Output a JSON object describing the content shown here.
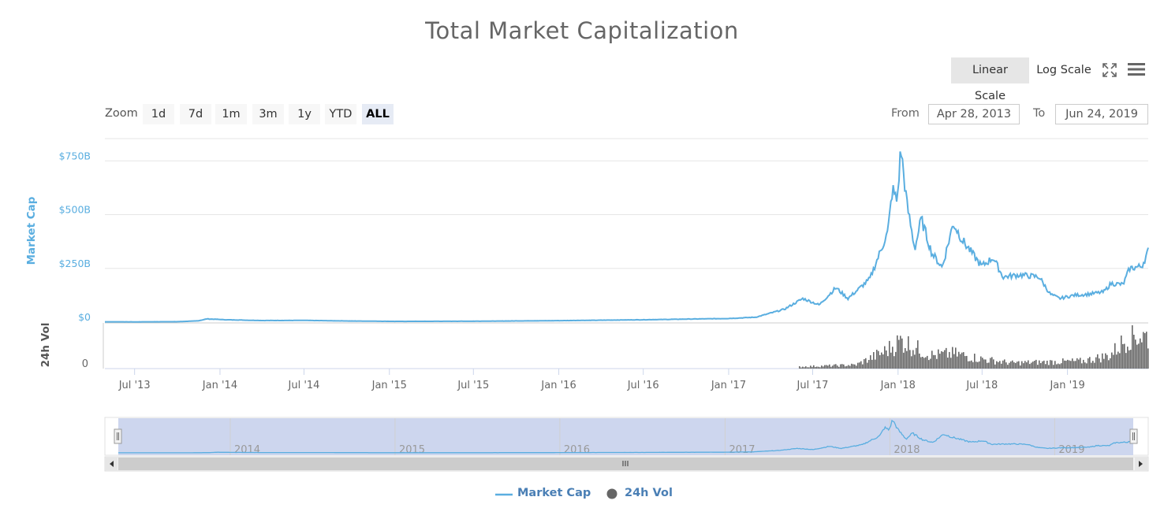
{
  "title": "Total Market Capitalization",
  "scale_buttons": {
    "linear": "Linear Scale",
    "log": "Log Scale",
    "fullscreen_icon": "fullscreen-icon",
    "menu_icon": "hamburger-menu-icon"
  },
  "zoom": {
    "label": "Zoom",
    "buttons": [
      "1d",
      "7d",
      "1m",
      "3m",
      "1y",
      "YTD",
      "ALL"
    ],
    "active": "ALL"
  },
  "range": {
    "from_label": "From",
    "from_value": "Apr 28, 2013",
    "to_label": "To",
    "to_value": "Jun 24, 2019"
  },
  "colors": {
    "market_cap": "#5aaee0",
    "volume": "#666666",
    "navigator_fill": "#cdd6ee",
    "grid": "#e6e6e6"
  },
  "chart_data": {
    "type": "line",
    "title": "Total Market Capitalization",
    "xlim": [
      "2013-04-28",
      "2019-06-24"
    ],
    "x_ticks": [
      "Jul '13",
      "Jan '14",
      "Jul '14",
      "Jan '15",
      "Jul '15",
      "Jan '16",
      "Jul '16",
      "Jan '17",
      "Jul '17",
      "Jan '18",
      "Jul '18",
      "Jan '19"
    ],
    "y_axis": {
      "label": "Market Cap",
      "ticks": [
        "$0",
        "$250B",
        "$500B",
        "$750B"
      ],
      "ylim": [
        0,
        850
      ]
    },
    "volume_axis": {
      "label": "24h Vol",
      "ticks": [
        "0"
      ]
    },
    "navigator_years": [
      "2014",
      "2015",
      "2016",
      "2017",
      "2018",
      "2019"
    ],
    "series": [
      {
        "name": "Market Cap",
        "unit": "billion USD",
        "points": [
          [
            "2013-04-28",
            1.6
          ],
          [
            "2013-07-01",
            1.2
          ],
          [
            "2013-10-01",
            2.0
          ],
          [
            "2013-11-15",
            6.0
          ],
          [
            "2013-12-04",
            15.0
          ],
          [
            "2014-01-15",
            11.0
          ],
          [
            "2014-04-01",
            7.5
          ],
          [
            "2014-07-01",
            8.0
          ],
          [
            "2014-10-01",
            5.5
          ],
          [
            "2015-01-15",
            3.5
          ],
          [
            "2015-07-01",
            4.2
          ],
          [
            "2016-01-01",
            7.0
          ],
          [
            "2016-07-01",
            11.0
          ],
          [
            "2017-01-01",
            17.0
          ],
          [
            "2017-03-01",
            23.0
          ],
          [
            "2017-05-01",
            60.0
          ],
          [
            "2017-06-10",
            110.0
          ],
          [
            "2017-07-15",
            80.0
          ],
          [
            "2017-08-20",
            160.0
          ],
          [
            "2017-09-15",
            110.0
          ],
          [
            "2017-11-01",
            200.0
          ],
          [
            "2017-12-10",
            420.0
          ],
          [
            "2017-12-20",
            620.0
          ],
          [
            "2017-12-30",
            560.0
          ],
          [
            "2018-01-07",
            810.0
          ],
          [
            "2018-01-20",
            550.0
          ],
          [
            "2018-02-06",
            340.0
          ],
          [
            "2018-02-20",
            480.0
          ],
          [
            "2018-03-15",
            320.0
          ],
          [
            "2018-04-06",
            255.0
          ],
          [
            "2018-04-30",
            460.0
          ],
          [
            "2018-05-20",
            380.0
          ],
          [
            "2018-06-30",
            260.0
          ],
          [
            "2018-07-25",
            300.0
          ],
          [
            "2018-08-15",
            210.0
          ],
          [
            "2018-09-20",
            220.0
          ],
          [
            "2018-11-01",
            210.0
          ],
          [
            "2018-11-25",
            130.0
          ],
          [
            "2018-12-15",
            110.0
          ],
          [
            "2019-01-15",
            125.0
          ],
          [
            "2019-02-15",
            130.0
          ],
          [
            "2019-03-20",
            140.0
          ],
          [
            "2019-04-05",
            180.0
          ],
          [
            "2019-05-01",
            175.0
          ],
          [
            "2019-05-15",
            250.0
          ],
          [
            "2019-06-10",
            260.0
          ],
          [
            "2019-06-24",
            330.0
          ]
        ]
      },
      {
        "name": "24h Vol",
        "unit": "relative",
        "points": [
          [
            "2017-06-01",
            0.05
          ],
          [
            "2017-10-01",
            0.1
          ],
          [
            "2017-12-01",
            0.45
          ],
          [
            "2018-01-07",
            0.75
          ],
          [
            "2018-02-06",
            0.55
          ],
          [
            "2018-03-15",
            0.35
          ],
          [
            "2018-05-01",
            0.4
          ],
          [
            "2018-07-01",
            0.25
          ],
          [
            "2018-09-01",
            0.15
          ],
          [
            "2018-12-01",
            0.18
          ],
          [
            "2019-02-01",
            0.2
          ],
          [
            "2019-04-01",
            0.35
          ],
          [
            "2019-05-15",
            0.9
          ],
          [
            "2019-06-24",
            0.85
          ]
        ]
      }
    ],
    "legend": {
      "placement": "bottom-center",
      "entries": [
        "Market Cap",
        "24h Vol"
      ]
    },
    "grid": true
  }
}
